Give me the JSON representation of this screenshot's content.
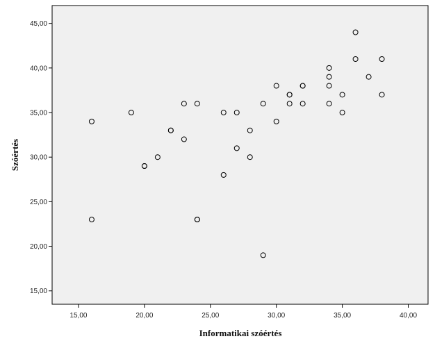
{
  "chart_data": {
    "type": "scatter",
    "xlabel": "Informatikai szóértés",
    "ylabel": "Szóértés",
    "xlim": [
      13.0,
      41.5
    ],
    "ylim": [
      13.5,
      47.0
    ],
    "x_ticks": [
      15,
      20,
      25,
      30,
      35,
      40
    ],
    "y_ticks": [
      15,
      20,
      25,
      30,
      35,
      40,
      45
    ],
    "x_tick_labels": [
      "15,00",
      "20,00",
      "25,00",
      "30,00",
      "35,00",
      "40,00"
    ],
    "y_tick_labels": [
      "15,00",
      "20,00",
      "25,00",
      "30,00",
      "35,00",
      "40,00",
      "45,00"
    ],
    "grid": false,
    "plot_background": "#f0f0f0",
    "marker_color": "#000000",
    "marker_style": "hollow-circle",
    "points": [
      {
        "x": 16,
        "y": 34
      },
      {
        "x": 16,
        "y": 23
      },
      {
        "x": 19,
        "y": 35
      },
      {
        "x": 20,
        "y": 29
      },
      {
        "x": 20,
        "y": 29
      },
      {
        "x": 21,
        "y": 30
      },
      {
        "x": 22,
        "y": 33
      },
      {
        "x": 22,
        "y": 33
      },
      {
        "x": 23,
        "y": 36
      },
      {
        "x": 23,
        "y": 32
      },
      {
        "x": 24,
        "y": 36
      },
      {
        "x": 24,
        "y": 23
      },
      {
        "x": 24,
        "y": 23
      },
      {
        "x": 26,
        "y": 35
      },
      {
        "x": 26,
        "y": 28
      },
      {
        "x": 27,
        "y": 35
      },
      {
        "x": 27,
        "y": 31
      },
      {
        "x": 28,
        "y": 33
      },
      {
        "x": 28,
        "y": 30
      },
      {
        "x": 29,
        "y": 36
      },
      {
        "x": 29,
        "y": 19
      },
      {
        "x": 30,
        "y": 38
      },
      {
        "x": 30,
        "y": 34
      },
      {
        "x": 31,
        "y": 37
      },
      {
        "x": 31,
        "y": 37
      },
      {
        "x": 31,
        "y": 36
      },
      {
        "x": 32,
        "y": 38
      },
      {
        "x": 32,
        "y": 38
      },
      {
        "x": 32,
        "y": 36
      },
      {
        "x": 34,
        "y": 40
      },
      {
        "x": 34,
        "y": 39
      },
      {
        "x": 34,
        "y": 38
      },
      {
        "x": 34,
        "y": 36
      },
      {
        "x": 35,
        "y": 37
      },
      {
        "x": 35,
        "y": 35
      },
      {
        "x": 36,
        "y": 44
      },
      {
        "x": 36,
        "y": 41
      },
      {
        "x": 37,
        "y": 39
      },
      {
        "x": 38,
        "y": 41
      },
      {
        "x": 38,
        "y": 37
      }
    ]
  }
}
